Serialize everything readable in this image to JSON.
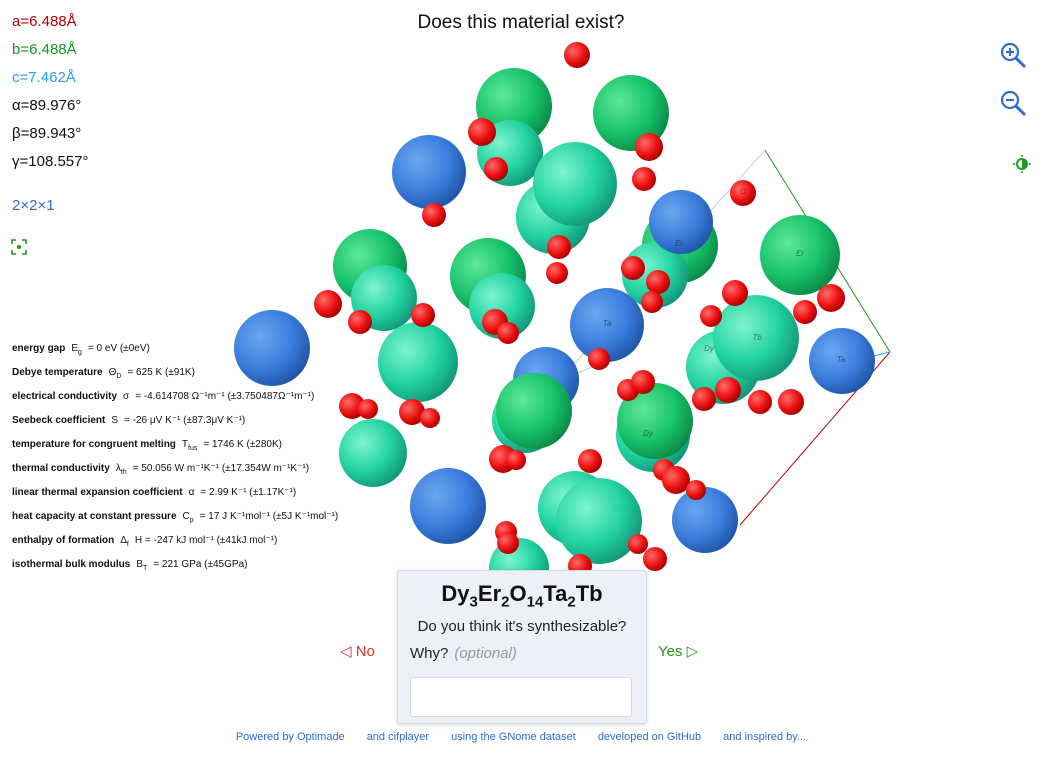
{
  "title": "Does this material exist?",
  "lattice": {
    "a": "a=6.488Å",
    "b": "b=6.488Å",
    "c": "c=7.462Å",
    "alpha": "α=89.976°",
    "beta": "β=89.943°",
    "gamma": "γ=108.557°",
    "supercell": "2×2×1",
    "colors": {
      "a": "#b30000",
      "b": "#1a9a1a",
      "c": "#2a9df4"
    }
  },
  "tools": {
    "zoom_in": "zoom-in-icon",
    "zoom_out": "zoom-out-icon",
    "theme": "contrast-icon",
    "fit": "fit-view-icon"
  },
  "properties": [
    {
      "label": "energy gap",
      "sym": "E",
      "sub": "g",
      "value": "= 0 eV (±0eV)"
    },
    {
      "label": "Debye temperature",
      "sym": "Θ",
      "sub": "D",
      "value": "= 625 K (±91K)"
    },
    {
      "label": "electrical conductivity",
      "sym": "σ",
      "sub": "",
      "value": "= -4.614708 Ω⁻¹m⁻¹ (±3.750487Ω⁻¹m⁻¹)"
    },
    {
      "label": "Seebeck coefficient",
      "sym": "S",
      "sub": "",
      "value": "= -26 μV K⁻¹ (±87.3μV K⁻¹)"
    },
    {
      "label": "temperature for congruent melting",
      "sym": "T",
      "sub": "fus",
      "value": "= 1746 K (±280K)"
    },
    {
      "label": "thermal conductivity",
      "sym": "λ",
      "sub": "th",
      "value": "= 50.056 W m⁻¹K⁻¹ (±17.354W m⁻¹K⁻¹)"
    },
    {
      "label": "linear thermal expansion coefficient",
      "sym": "α",
      "sub": "",
      "value": "= 2.99 K⁻¹ (±1.17K⁻¹)"
    },
    {
      "label": "heat capacity at constant pressure",
      "sym": "C",
      "sub": "p",
      "value": "= 17 J K⁻¹mol⁻¹ (±5J K⁻¹mol⁻¹)"
    },
    {
      "label": "enthalpy of formation",
      "sym": "Δ",
      "sub": "f",
      "value": "H = -247 kJ mol⁻¹ (±41kJ mol⁻¹)"
    },
    {
      "label": "isothermal bulk modulus",
      "sym": "B",
      "sub": "T",
      "value": "= 221 GPa (±45GPa)"
    }
  ],
  "card": {
    "formula_parts": [
      {
        "el": "Dy",
        "n": "3"
      },
      {
        "el": "Er",
        "n": "2"
      },
      {
        "el": "O",
        "n": "14"
      },
      {
        "el": "Ta",
        "n": "2"
      },
      {
        "el": "Tb",
        "n": ""
      }
    ],
    "question": "Do you think it's synthesizable?",
    "why_label": "Why?",
    "why_hint": "(optional)",
    "reason_value": ""
  },
  "votes": {
    "no": "◁ No",
    "yes": "Yes ▷",
    "no_color": "#e03030",
    "yes_color": "#1f9a1f"
  },
  "footer": [
    "Powered by Optimade",
    "and cifplayer",
    "using the GNome dataset",
    "developed on GitHub",
    "and inspired by..."
  ],
  "atom_labels": [
    "Er",
    "Er",
    "Ta",
    "Ta",
    "Tb",
    "Dy",
    "Dy",
    "O"
  ],
  "structure_colors": {
    "Ta": "#3b7ddd",
    "Er": "#17c36a",
    "Dy": "#22d2a0",
    "Tb": "#33e0b0",
    "O": "#ee1111"
  }
}
